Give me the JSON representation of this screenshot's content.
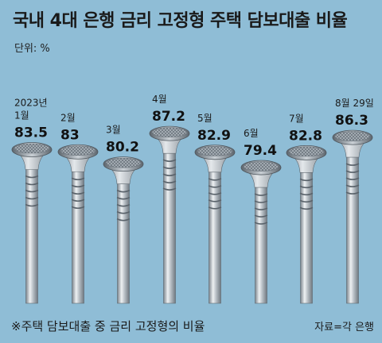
{
  "title": "국내 4대 은행 금리 고정형 주택 담보대출 비율",
  "unit": "단위: %",
  "footnote": "※주택 담보대출 중 금리 고정형의 비율",
  "source": "자료=각 은행",
  "colors": {
    "background": "#8fbdd6",
    "nail_light": "#eef1f3",
    "nail_dark": "#6f7880"
  },
  "chart_data": {
    "type": "bar",
    "categories": [
      [
        "2023년",
        "1월"
      ],
      [
        "2월"
      ],
      [
        "3월"
      ],
      [
        "4월"
      ],
      [
        "5월"
      ],
      [
        "6월"
      ],
      [
        "7월"
      ],
      [
        "8월 29일"
      ]
    ],
    "values": [
      83.5,
      83,
      80.2,
      87.2,
      82.9,
      79.4,
      82.8,
      86.3
    ],
    "value_labels": [
      "83.5",
      "83",
      "80.2",
      "87.2",
      "82.9",
      "79.4",
      "82.8",
      "86.3"
    ],
    "ylim": [
      70,
      90
    ],
    "grid": false
  }
}
